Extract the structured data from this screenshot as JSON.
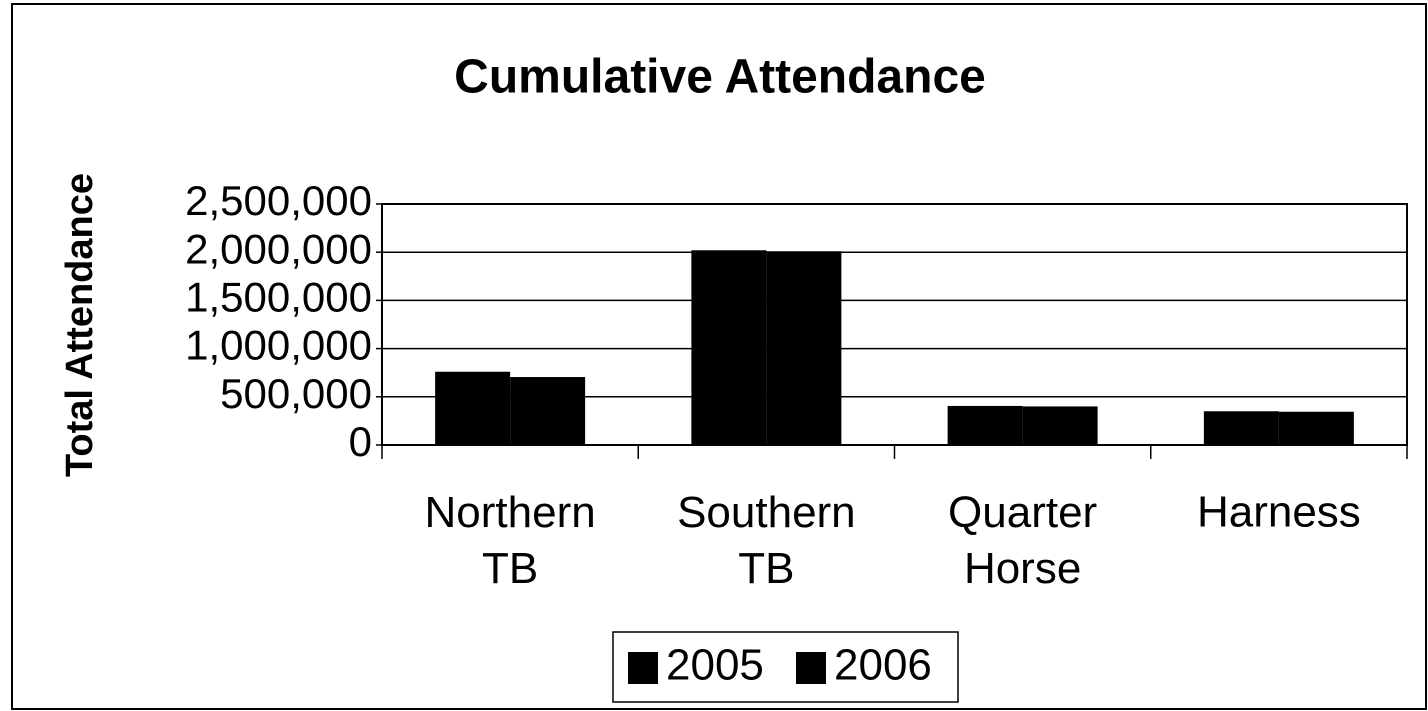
{
  "chart_data": {
    "type": "bar",
    "title": "Cumulative Attendance",
    "y_label": "Total Attendance",
    "categories": [
      "Northern TB",
      "Southern TB",
      "Quarter Horse",
      "Harness"
    ],
    "series": [
      {
        "name": "2005",
        "color": "#000000",
        "values": [
          760000,
          2020000,
          405000,
          350000
        ]
      },
      {
        "name": "2006",
        "color": "#000000",
        "values": [
          705000,
          2010000,
          400000,
          345000
        ]
      }
    ],
    "ylim": [
      0,
      2500000
    ],
    "yticks": [
      0,
      {
        "value": 500000,
        "label": "500,000"
      },
      {
        "value": 1000000,
        "label": "1,000,000"
      },
      {
        "value": 1500000,
        "label": "1,500,000"
      },
      {
        "value": 2000000,
        "label": "2,000,000"
      },
      {
        "value": 2500000,
        "label": "2,500,000"
      }
    ],
    "grid": true,
    "legend": "bottom"
  }
}
